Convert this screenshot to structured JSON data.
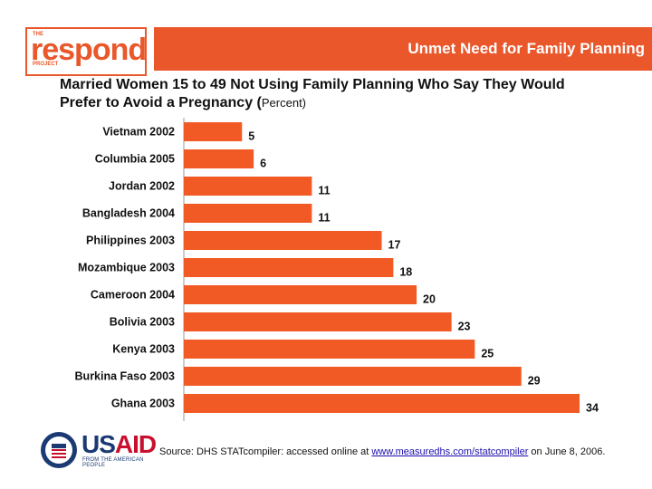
{
  "logo": {
    "top_text": "THE",
    "main_text": "respond",
    "bottom_text": "PROJECT"
  },
  "header": {
    "title": "Unmet Need for Family Planning"
  },
  "chart_data": {
    "type": "bar",
    "orientation": "horizontal",
    "title": "Married Women 15 to 49 Not Using Family Planning Who Say They Would Prefer to Avoid a Pregnancy (",
    "title_unit": "Percent)",
    "categories": [
      "Vietnam 2002",
      "Columbia 2005",
      "Jordan 2002",
      "Bangladesh 2004",
      "Philippines 2003",
      "Mozambique 2003",
      "Cameroon 2004",
      "Bolivia 2003",
      "Kenya 2003",
      "Burkina Faso 2003",
      "Ghana 2003"
    ],
    "values": [
      5,
      6,
      11,
      11,
      17,
      18,
      20,
      23,
      25,
      29,
      34
    ],
    "xlim": [
      0,
      34
    ],
    "bar_color": "#f15a24",
    "grid": false
  },
  "footer": {
    "usaid_logo": {
      "name_part1": "US",
      "name_part2": "AID",
      "tagline": "FROM THE AMERICAN PEOPLE"
    },
    "source_prefix": "Source: DHS STATcompiler: accessed online at ",
    "source_link": "www.measuredhs.com/statcompiler",
    "source_suffix": " on June 8, 2006."
  }
}
